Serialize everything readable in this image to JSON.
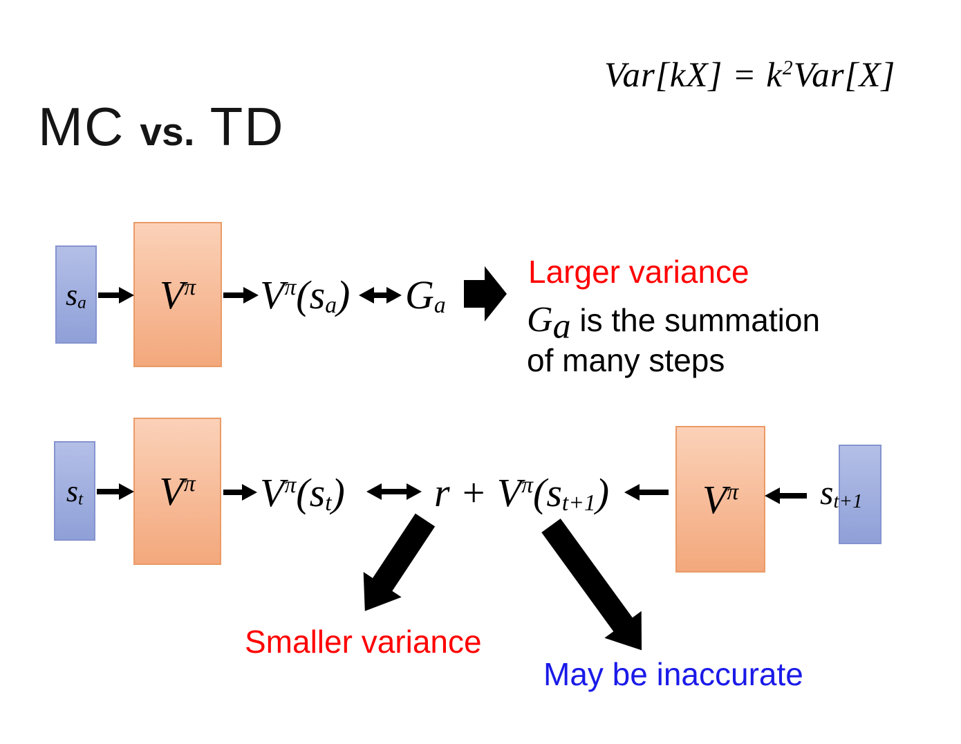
{
  "colors": {
    "background": "#ffffff",
    "ink": "#000000",
    "red": "#ff0000",
    "blue_text": "#1a1ae8",
    "title_ink": "#151515",
    "state_box_top": "#b4bfe7",
    "state_box_bottom": "#8fa0d8",
    "state_box_border": "#8593cf",
    "model_box_top": "#fbd1b8",
    "model_box_bottom": "#f3a87c",
    "model_box_border": "#ea9a66"
  },
  "icons": {
    "flow_arrow": "→",
    "equivalence_arrow": "↔",
    "implies_block_arrow": "➡",
    "diagonal_block_arrow": "↘"
  },
  "header": {
    "formula": [
      {
        "t": "Var[kX] = k"
      },
      {
        "t": "2",
        "v": "sup"
      },
      {
        "t": "Var[X]"
      }
    ],
    "title_mc": "MC",
    "title_vs": "vs.",
    "title_td": "TD"
  },
  "mc_row": {
    "state_label": [
      {
        "t": "s"
      },
      {
        "t": "a",
        "v": "sub"
      }
    ],
    "model_label": [
      {
        "t": "V"
      },
      {
        "t": "π",
        "v": "sup"
      }
    ],
    "value_label": [
      {
        "t": "V"
      },
      {
        "t": "π",
        "v": "sup"
      },
      {
        "t": "(s"
      },
      {
        "t": "a",
        "v": "sub"
      },
      {
        "t": ")"
      }
    ],
    "target_label": [
      {
        "t": "G"
      },
      {
        "t": "a",
        "v": "sub"
      }
    ],
    "note_title": "Larger variance",
    "note_line1": [
      {
        "t": "G",
        "m": true
      },
      {
        "t": "a",
        "v": "sub",
        "m": true
      },
      {
        "t": " is the summation"
      }
    ],
    "note_line2": "of many steps"
  },
  "td_row": {
    "state_label": [
      {
        "t": "s"
      },
      {
        "t": "t",
        "v": "sub"
      }
    ],
    "model_label": [
      {
        "t": "V"
      },
      {
        "t": "π",
        "v": "sup"
      }
    ],
    "value_label": [
      {
        "t": "V"
      },
      {
        "t": "π",
        "v": "sup"
      },
      {
        "t": "(s"
      },
      {
        "t": "t",
        "v": "sub"
      },
      {
        "t": ")"
      }
    ],
    "target_label": [
      {
        "t": "r + V"
      },
      {
        "t": "π",
        "v": "sup"
      },
      {
        "t": "(s"
      },
      {
        "t": "t+1",
        "v": "sub"
      },
      {
        "t": ")"
      }
    ],
    "model2_label": [
      {
        "t": "V"
      },
      {
        "t": "π",
        "v": "sup"
      }
    ],
    "state2_label": [
      {
        "t": "s"
      },
      {
        "t": "t+1",
        "v": "sub"
      }
    ],
    "note_smaller": "Smaller variance",
    "note_inaccurate": "May be inaccurate"
  }
}
